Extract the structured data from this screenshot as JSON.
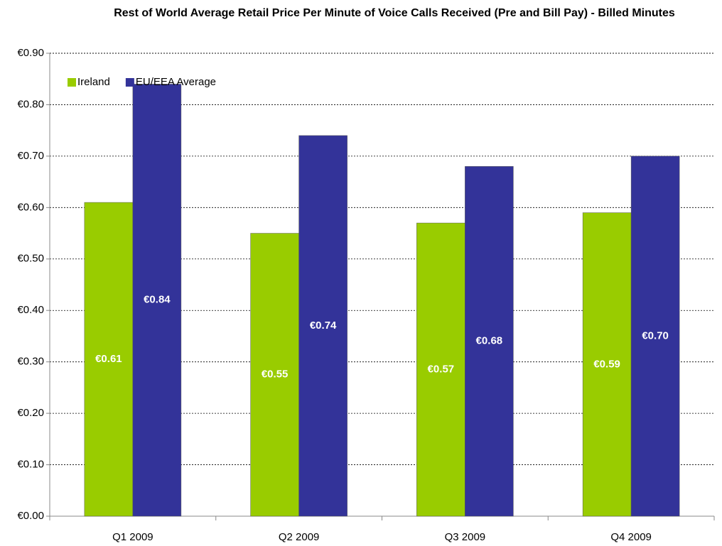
{
  "chart_data": {
    "type": "bar",
    "title": "Rest of World Average Retail Price Per Minute of Voice Calls Received (Pre and Bill Pay) - Billed Minutes",
    "categories": [
      "Q1 2009",
      "Q2 2009",
      "Q3 2009",
      "Q4 2009"
    ],
    "series": [
      {
        "name": "Ireland",
        "color": "#99cc00",
        "values": [
          0.61,
          0.55,
          0.57,
          0.59
        ],
        "value_labels": [
          "€0.61",
          "€0.55",
          "€0.57",
          "€0.59"
        ]
      },
      {
        "name": "EU/EEA Average",
        "color": "#333399",
        "values": [
          0.84,
          0.74,
          0.68,
          0.7
        ],
        "value_labels": [
          "€0.84",
          "€0.74",
          "€0.68",
          "€0.70"
        ]
      }
    ],
    "ylim": [
      0,
      0.9
    ],
    "yticks": [
      {
        "value": 0,
        "label": "€0.00"
      },
      {
        "value": 0.1,
        "label": "€0.10"
      },
      {
        "value": 0.2,
        "label": "€0.20"
      },
      {
        "value": 0.3,
        "label": "€0.30"
      },
      {
        "value": 0.4,
        "label": "€0.40"
      },
      {
        "value": 0.5,
        "label": "€0.50"
      },
      {
        "value": 0.6,
        "label": "€0.60"
      },
      {
        "value": 0.7,
        "label": "€0.70"
      },
      {
        "value": 0.8,
        "label": "€0.80"
      },
      {
        "value": 0.9,
        "label": "€0.90"
      }
    ],
    "grid": true,
    "legend": "top-left"
  }
}
